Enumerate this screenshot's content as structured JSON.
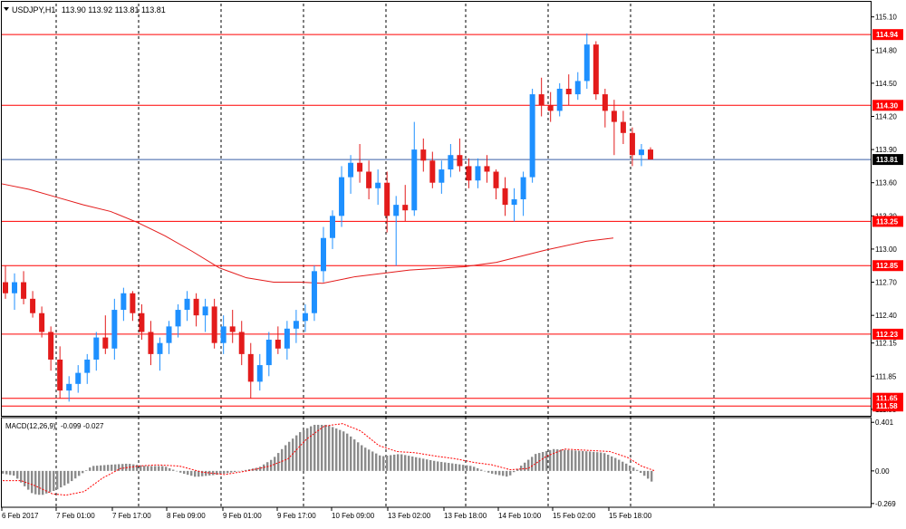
{
  "colors": {
    "up": "#1e90ff",
    "down": "#e31b1b",
    "level": "#ff0000",
    "current": "#3a5fa8",
    "ma": "#e31b1b",
    "macd_hist": "#8c8c8c",
    "macd_signal": "#ff0000",
    "vgrid": "#000000",
    "frame": "#000000",
    "label_text": "#ffffff"
  },
  "chart_data": [
    {
      "type": "candlestick",
      "title": "USDJPY,H1  113.90 113.92 113.81 113.81",
      "symbol": "USDJPY,H1",
      "ohlc_readout": "113.90 113.92 113.81 113.81",
      "ylim": [
        111.5,
        115.22
      ],
      "y_ticks": [
        "115.10",
        "114.80",
        "114.50",
        "114.20",
        "113.90",
        "113.60",
        "113.30",
        "113.00",
        "112.70",
        "112.40",
        "112.15",
        "111.85",
        "111.55"
      ],
      "x_ticks": [
        "6 Feb 2017",
        "7 Feb 01:00",
        "7 Feb 17:00",
        "8 Feb 09:00",
        "9 Feb 01:00",
        "9 Feb 17:00",
        "10 Feb 09:00",
        "13 Feb 02:00",
        "13 Feb 18:00",
        "14 Feb 10:00",
        "15 Feb 02:00",
        "15 Feb 18:00"
      ],
      "levels": [
        "114.94",
        "114.30",
        "113.25",
        "112.85",
        "112.23",
        "111.65",
        "111.58"
      ],
      "current_price": "113.81",
      "moving_average": [
        [
          0,
          113.59
        ],
        [
          10,
          113.54
        ],
        [
          20,
          113.47
        ],
        [
          30,
          113.4
        ],
        [
          40,
          113.34
        ],
        [
          50,
          113.24
        ],
        [
          60,
          113.12
        ],
        [
          70,
          112.98
        ],
        [
          80,
          112.83
        ],
        [
          90,
          112.74
        ],
        [
          100,
          112.7
        ],
        [
          110,
          112.7
        ],
        [
          118,
          112.69
        ],
        [
          130,
          112.75
        ],
        [
          150,
          112.81
        ],
        [
          170,
          112.84
        ],
        [
          182,
          112.88
        ],
        [
          200,
          112.99
        ],
        [
          215,
          113.07
        ],
        [
          225,
          113.1
        ]
      ],
      "candles": [
        [
          112.7,
          112.85,
          112.55,
          112.6
        ],
        [
          112.6,
          112.78,
          112.45,
          112.7
        ],
        [
          112.7,
          112.8,
          112.5,
          112.55
        ],
        [
          112.55,
          112.62,
          112.38,
          112.42
        ],
        [
          112.42,
          112.48,
          112.2,
          112.25
        ],
        [
          112.25,
          112.3,
          111.9,
          112.0
        ],
        [
          112.0,
          112.12,
          111.65,
          111.72
        ],
        [
          111.72,
          111.85,
          111.62,
          111.78
        ],
        [
          111.78,
          111.95,
          111.7,
          111.88
        ],
        [
          111.88,
          112.05,
          111.78,
          112.0
        ],
        [
          112.0,
          112.25,
          111.9,
          112.2
        ],
        [
          112.2,
          112.4,
          112.05,
          112.1
        ],
        [
          112.1,
          112.55,
          112.0,
          112.45
        ],
        [
          112.45,
          112.65,
          112.35,
          112.6
        ],
        [
          112.6,
          112.62,
          112.35,
          112.42
        ],
        [
          112.42,
          112.5,
          112.18,
          112.25
        ],
        [
          112.25,
          112.35,
          111.95,
          112.05
        ],
        [
          112.05,
          112.2,
          111.9,
          112.15
        ],
        [
          112.15,
          112.35,
          112.05,
          112.3
        ],
        [
          112.3,
          112.5,
          112.2,
          112.45
        ],
        [
          112.45,
          112.62,
          112.35,
          112.55
        ],
        [
          112.55,
          112.6,
          112.3,
          112.4
        ],
        [
          112.4,
          112.55,
          112.25,
          112.48
        ],
        [
          112.48,
          112.55,
          112.1,
          112.15
        ],
        [
          112.15,
          112.4,
          112.05,
          112.3
        ],
        [
          112.3,
          112.45,
          112.15,
          112.25
        ],
        [
          112.25,
          112.35,
          111.95,
          112.05
        ],
        [
          112.05,
          112.15,
          111.65,
          111.8
        ],
        [
          111.8,
          112.05,
          111.72,
          111.95
        ],
        [
          111.95,
          112.25,
          111.85,
          112.18
        ],
        [
          112.18,
          112.3,
          112.05,
          112.1
        ],
        [
          112.1,
          112.35,
          112.0,
          112.28
        ],
        [
          112.28,
          112.45,
          112.15,
          112.35
        ],
        [
          112.35,
          112.5,
          112.25,
          112.42
        ],
        [
          112.42,
          112.85,
          112.35,
          112.8
        ],
        [
          112.8,
          113.2,
          112.7,
          113.1
        ],
        [
          113.1,
          113.35,
          113.0,
          113.3
        ],
        [
          113.3,
          113.75,
          113.2,
          113.65
        ],
        [
          113.65,
          113.85,
          113.5,
          113.78
        ],
        [
          113.78,
          113.95,
          113.6,
          113.7
        ],
        [
          113.7,
          113.8,
          113.45,
          113.55
        ],
        [
          113.55,
          113.72,
          113.4,
          113.6
        ],
        [
          113.6,
          113.7,
          113.15,
          113.3
        ],
        [
          113.3,
          113.48,
          112.85,
          113.4
        ],
        [
          113.4,
          113.58,
          113.25,
          113.35
        ],
        [
          113.35,
          114.15,
          113.3,
          113.9
        ],
        [
          113.9,
          114.0,
          113.7,
          113.8
        ],
        [
          113.8,
          113.88,
          113.55,
          113.6
        ],
        [
          113.6,
          113.8,
          113.5,
          113.72
        ],
        [
          113.72,
          113.95,
          113.65,
          113.85
        ],
        [
          113.85,
          114.0,
          113.7,
          113.75
        ],
        [
          113.75,
          113.82,
          113.55,
          113.62
        ],
        [
          113.62,
          113.82,
          113.55,
          113.75
        ],
        [
          113.75,
          113.85,
          113.6,
          113.7
        ],
        [
          113.7,
          113.72,
          113.45,
          113.55
        ],
        [
          113.55,
          113.65,
          113.3,
          113.4
        ],
        [
          113.4,
          113.55,
          113.25,
          113.45
        ],
        [
          113.45,
          113.7,
          113.3,
          113.65
        ],
        [
          113.65,
          114.45,
          113.6,
          114.4
        ],
        [
          114.4,
          114.55,
          114.2,
          114.3
        ],
        [
          114.3,
          114.42,
          114.15,
          114.25
        ],
        [
          114.25,
          114.5,
          114.2,
          114.45
        ],
        [
          114.45,
          114.58,
          114.3,
          114.4
        ],
        [
          114.4,
          114.6,
          114.35,
          114.52
        ],
        [
          114.52,
          114.95,
          114.45,
          114.85
        ],
        [
          114.85,
          114.88,
          114.35,
          114.4
        ],
        [
          114.4,
          114.45,
          114.1,
          114.25
        ],
        [
          114.25,
          114.35,
          113.85,
          114.15
        ],
        [
          114.15,
          114.25,
          113.95,
          114.05
        ],
        [
          114.05,
          114.1,
          113.75,
          113.85
        ],
        [
          113.85,
          113.95,
          113.75,
          113.9
        ],
        [
          113.9,
          113.92,
          113.81,
          113.81
        ]
      ]
    },
    {
      "type": "bar",
      "title": "MACD(12,26,9) -0.099 -0.027",
      "label": "MACD(12,26,9)",
      "values_readout": "-0.099 -0.027",
      "ylim": [
        -0.3,
        0.44
      ],
      "y_ticks": [
        "0.401",
        "0.00",
        "-0.269"
      ],
      "macd_keypoints": [
        [
          0,
          -0.02
        ],
        [
          15,
          -0.04
        ],
        [
          25,
          -0.12
        ],
        [
          35,
          -0.19
        ],
        [
          45,
          -0.2
        ],
        [
          60,
          -0.16
        ],
        [
          75,
          -0.1
        ],
        [
          88,
          -0.03
        ],
        [
          100,
          0.04
        ],
        [
          118,
          0.05
        ],
        [
          140,
          0.06
        ],
        [
          160,
          0.04
        ],
        [
          180,
          0.04
        ],
        [
          200,
          -0.02
        ],
        [
          215,
          -0.05
        ],
        [
          240,
          -0.03
        ],
        [
          265,
          0.0
        ],
        [
          285,
          0.03
        ],
        [
          300,
          0.1
        ],
        [
          315,
          0.22
        ],
        [
          330,
          0.32
        ],
        [
          345,
          0.38
        ],
        [
          360,
          0.38
        ],
        [
          380,
          0.32
        ],
        [
          400,
          0.2
        ],
        [
          420,
          0.12
        ],
        [
          440,
          0.14
        ],
        [
          460,
          0.11
        ],
        [
          480,
          0.08
        ],
        [
          500,
          0.06
        ],
        [
          520,
          0.04
        ],
        [
          540,
          -0.02
        ],
        [
          560,
          -0.05
        ],
        [
          575,
          0.05
        ],
        [
          590,
          0.14
        ],
        [
          610,
          0.18
        ],
        [
          630,
          0.17
        ],
        [
          650,
          0.16
        ],
        [
          665,
          0.15
        ],
        [
          680,
          0.1
        ],
        [
          700,
          0.02
        ],
        [
          720,
          -0.1
        ]
      ],
      "signal_keypoints": [
        [
          0,
          -0.08
        ],
        [
          20,
          -0.08
        ],
        [
          35,
          -0.12
        ],
        [
          55,
          -0.19
        ],
        [
          70,
          -0.2
        ],
        [
          90,
          -0.17
        ],
        [
          110,
          -0.06
        ],
        [
          130,
          0.02
        ],
        [
          150,
          0.04
        ],
        [
          170,
          0.05
        ],
        [
          195,
          0.04
        ],
        [
          220,
          -0.01
        ],
        [
          245,
          -0.03
        ],
        [
          270,
          0.0
        ],
        [
          295,
          0.04
        ],
        [
          315,
          0.1
        ],
        [
          335,
          0.26
        ],
        [
          355,
          0.37
        ],
        [
          375,
          0.39
        ],
        [
          395,
          0.33
        ],
        [
          415,
          0.21
        ],
        [
          435,
          0.16
        ],
        [
          455,
          0.15
        ],
        [
          480,
          0.12
        ],
        [
          500,
          0.1
        ],
        [
          520,
          0.07
        ],
        [
          540,
          0.05
        ],
        [
          560,
          0.01
        ],
        [
          580,
          0.02
        ],
        [
          600,
          0.12
        ],
        [
          620,
          0.18
        ],
        [
          645,
          0.17
        ],
        [
          670,
          0.16
        ],
        [
          690,
          0.11
        ],
        [
          705,
          0.04
        ],
        [
          720,
          0.0
        ]
      ]
    }
  ]
}
